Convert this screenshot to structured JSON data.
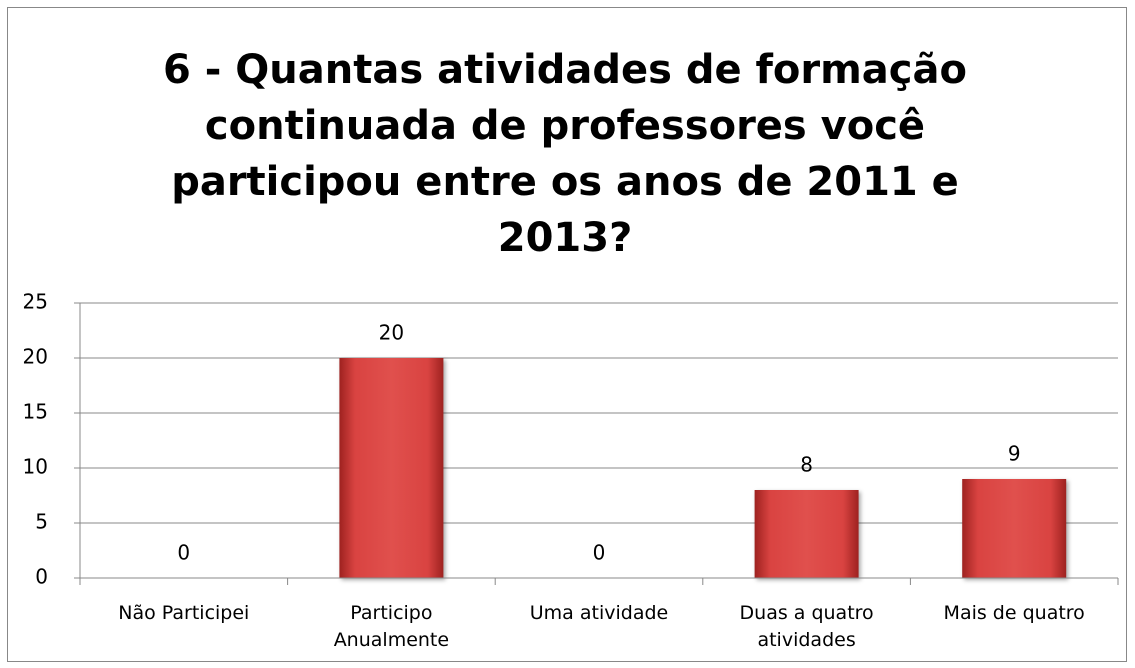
{
  "chart_data": {
    "type": "bar",
    "title": "6 - Quantas atividades de formação continuada de professores você participou entre os anos de 2011 e 2013?",
    "categories": [
      "Não Participei",
      "Participo Anualmente",
      "Uma atividade",
      "Duas a quatro atividades",
      "Mais de quatro"
    ],
    "values": [
      0,
      20,
      0,
      8,
      9
    ],
    "color": "#c0302f",
    "ylim": [
      0,
      25
    ],
    "yticks": [
      0,
      5,
      10,
      15,
      20,
      25
    ],
    "grid": true
  }
}
